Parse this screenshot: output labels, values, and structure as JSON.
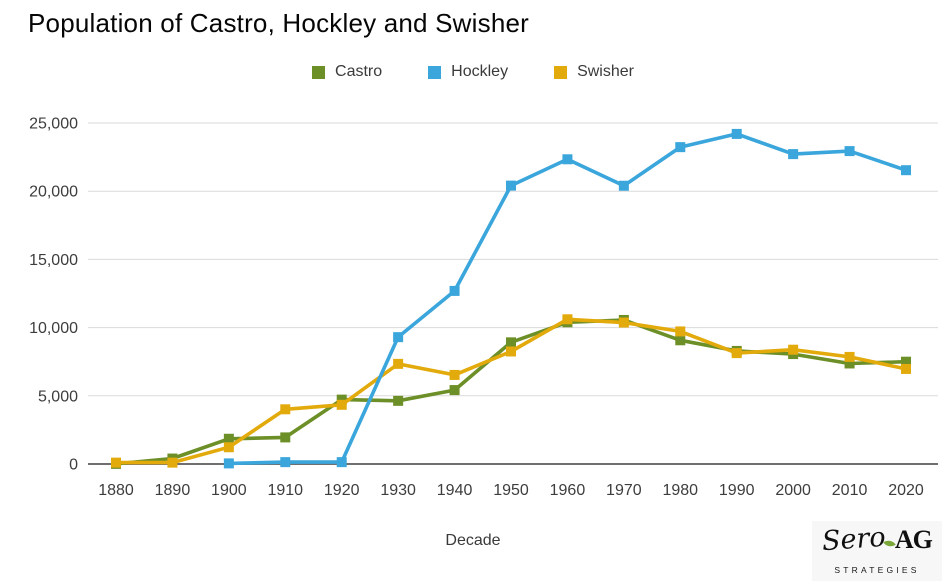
{
  "title": "Population of Castro, Hockley and Swisher",
  "legend": [
    {
      "label": "Castro",
      "color": "#6d8f28"
    },
    {
      "label": "Hockley",
      "color": "#3aa6dc"
    },
    {
      "label": "Swisher",
      "color": "#e3aa0c"
    }
  ],
  "chart_data": {
    "type": "line",
    "x": [
      "1880",
      "1890",
      "1900",
      "1910",
      "1920",
      "1930",
      "1940",
      "1950",
      "1960",
      "1970",
      "1980",
      "1990",
      "2000",
      "2010",
      "2020"
    ],
    "series": [
      {
        "name": "Castro",
        "color": "#6d8f28",
        "values": [
          10,
          400,
          1850,
          1950,
          4720,
          4630,
          5420,
          8920,
          10390,
          10560,
          9070,
          8290,
          8060,
          7370,
          7500
        ]
      },
      {
        "name": "Hockley",
        "color": "#3aa6dc",
        "values": [
          null,
          null,
          44,
          137,
          137,
          9300,
          12690,
          20410,
          22340,
          20400,
          23230,
          24200,
          22720,
          22940,
          21540
        ]
      },
      {
        "name": "Swisher",
        "color": "#e3aa0c",
        "values": [
          100,
          100,
          1230,
          4010,
          4340,
          7340,
          6530,
          8250,
          10610,
          10370,
          9720,
          8130,
          8380,
          7850,
          6970
        ]
      }
    ],
    "xlabel": "Decade",
    "ylabel": "",
    "ylim": [
      0,
      25000
    ],
    "yticks": [
      {
        "value": 0,
        "label": "0"
      },
      {
        "value": 5000,
        "label": "5,000"
      },
      {
        "value": 10000,
        "label": "10,000"
      },
      {
        "value": 15000,
        "label": "15,000"
      },
      {
        "value": 20000,
        "label": "20,000"
      },
      {
        "value": 25000,
        "label": "25,000"
      }
    ],
    "grid": true,
    "legend_position": "top",
    "marker": "square",
    "draw_order": [
      "Castro",
      "Swisher",
      "Hockley"
    ],
    "grid_color": "#dadada",
    "axis_color": "#6f6f6f",
    "tick_color": "#3d3d3d"
  },
  "logo": {
    "script": "Sero",
    "suffix": "AG",
    "sub": "STRATEGIES",
    "leaf_color": "#7aa83a"
  }
}
